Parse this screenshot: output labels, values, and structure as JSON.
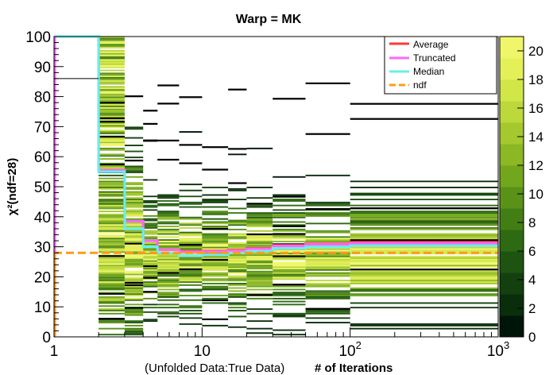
{
  "chart_data": {
    "type": "heatmap",
    "title": "Warp = MK",
    "xlabel_prefix": "(Unfolded Data:True Data)",
    "xlabel": "# of Iterations",
    "ylabel": "χ²(ndf=28)",
    "x_scale": "log",
    "xlim": [
      1,
      1000
    ],
    "ylim": [
      0,
      100
    ],
    "zlim": [
      0,
      21
    ],
    "x_ticks": [
      {
        "value": 1,
        "label": "1"
      },
      {
        "value": 10,
        "label": "10"
      },
      {
        "value": 100,
        "label": "10",
        "exp": "2"
      },
      {
        "value": 1000,
        "label": "10",
        "exp": "3"
      }
    ],
    "y_ticks": [
      "0",
      "10",
      "20",
      "30",
      "40",
      "50",
      "60",
      "70",
      "80",
      "90",
      "100"
    ],
    "z_ticks": [
      "0",
      "2",
      "4",
      "6",
      "8",
      "10",
      "12",
      "14",
      "16",
      "18",
      "20"
    ],
    "colormap": [
      "#00150a",
      "#0a2e0c",
      "#143f0e",
      "#1e5410",
      "#2e6a12",
      "#437e14",
      "#5a9218",
      "#72a61c",
      "#8bb824",
      "#a4c82e",
      "#bcd83a",
      "#d2e648",
      "#e4f058",
      "#f0f66a"
    ],
    "legend": {
      "position": "top-right",
      "entries": [
        {
          "name": "Average",
          "color": "#ff3a3a",
          "style": "solid"
        },
        {
          "name": "Truncated",
          "color": "#ff66ff",
          "style": "solid"
        },
        {
          "name": "Median",
          "color": "#66f0f0",
          "style": "solid"
        },
        {
          "name": "ndf",
          "color": "#ff9a1a",
          "style": "dashed"
        }
      ]
    },
    "x_edges": [
      1,
      2,
      3,
      4,
      5,
      7,
      10,
      15,
      20,
      30,
      50,
      100,
      1000
    ],
    "series": [
      {
        "name": "Average",
        "values": [
          100,
          55.5,
          38.5,
          32,
          29,
          28.5,
          28.6,
          28.9,
          29.5,
          30.5,
          31,
          31.5
        ]
      },
      {
        "name": "Truncated",
        "values": [
          100,
          55.5,
          38.5,
          32,
          29,
          28.3,
          28.4,
          28.7,
          29.3,
          30.3,
          30.8,
          31.2
        ]
      },
      {
        "name": "Median",
        "values": [
          100,
          55,
          36,
          30,
          28,
          27,
          27.3,
          28,
          28.5,
          29.5,
          30,
          30.4
        ]
      },
      {
        "name": "ndf",
        "values": [
          28,
          28
        ]
      }
    ],
    "ndf_x": [
      1,
      1000
    ]
  }
}
